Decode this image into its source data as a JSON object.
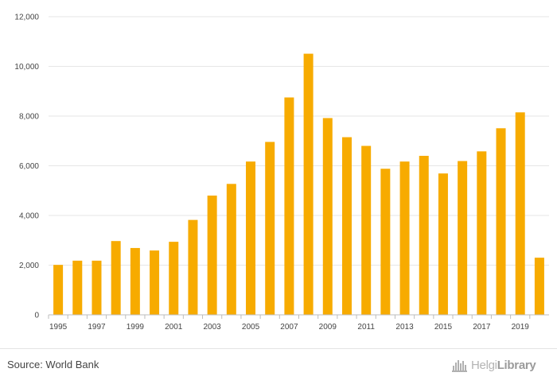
{
  "chart_data": {
    "type": "bar",
    "categories": [
      "1995",
      "1996",
      "1997",
      "1998",
      "1999",
      "2000",
      "2001",
      "2002",
      "2003",
      "2004",
      "2005",
      "2006",
      "2007",
      "2008",
      "2009",
      "2010",
      "2011",
      "2012",
      "2013",
      "2014",
      "2015",
      "2016",
      "2017",
      "2018",
      "2019",
      "2020"
    ],
    "values": [
      2010,
      2180,
      2180,
      2970,
      2690,
      2590,
      2940,
      3820,
      4800,
      5270,
      6170,
      6960,
      8750,
      10510,
      7920,
      7150,
      6800,
      5880,
      6170,
      6400,
      5690,
      6190,
      6580,
      7510,
      8150,
      2300
    ],
    "x_tick_labels": [
      "1995",
      "1997",
      "1999",
      "2001",
      "2003",
      "2005",
      "2007",
      "2009",
      "2011",
      "2013",
      "2015",
      "2017",
      "2019"
    ],
    "y_ticks": [
      0,
      2000,
      4000,
      6000,
      8000,
      10000,
      12000
    ],
    "y_tick_labels": [
      "0",
      "2,000",
      "4,000",
      "6,000",
      "8,000",
      "10,000",
      "12,000"
    ],
    "ylim": [
      0,
      12000
    ],
    "title": "",
    "xlabel": "",
    "ylabel": "",
    "bar_color": "#f7ab00",
    "grid": true,
    "legend": "none"
  },
  "footer": {
    "source": "Source: World Bank",
    "logo_light": "Helgi",
    "logo_bold": "Library",
    "logo_icon": "helgi-library-logo-icon"
  }
}
